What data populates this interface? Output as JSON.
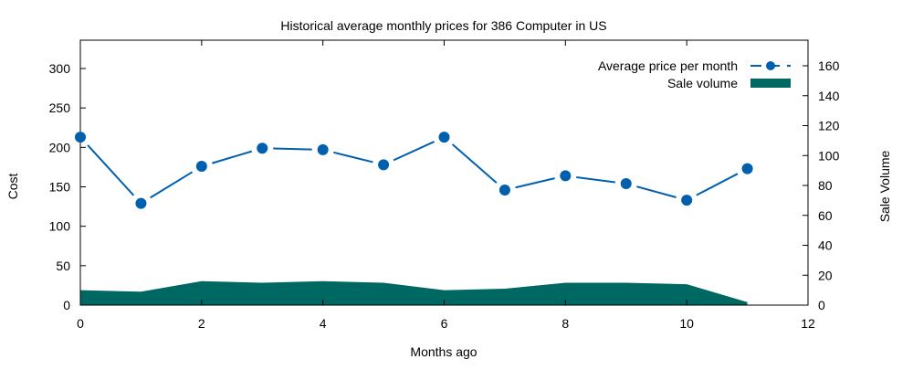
{
  "chart_data": {
    "type": "line",
    "title": "Historical average monthly prices for 386 Computer in US",
    "xlabel": "Months ago",
    "ylabel": "Cost",
    "y2label": "Sale Volume",
    "xlim": [
      0,
      12
    ],
    "ylim": [
      0,
      300
    ],
    "y2lim": [
      0,
      160
    ],
    "x_ticks": [
      0,
      2,
      4,
      6,
      8,
      10,
      12
    ],
    "y_ticks": [
      0,
      50,
      100,
      150,
      200,
      250,
      300
    ],
    "y2_ticks": [
      0,
      20,
      40,
      60,
      80,
      100,
      120,
      140,
      160
    ],
    "legend_position": "top-right",
    "grid": false,
    "x": [
      0,
      1,
      2,
      3,
      4,
      5,
      6,
      7,
      8,
      9,
      10,
      11
    ],
    "series": [
      {
        "name": "Average price per month",
        "axis": "left",
        "style": "linespoints",
        "color": "#0060ad",
        "values": [
          213,
          129,
          176,
          199,
          197,
          178,
          213,
          146,
          164,
          154,
          133,
          173
        ]
      },
      {
        "name": "Sale volume",
        "axis": "right",
        "style": "filledcurve",
        "color": "#006862",
        "values": [
          10,
          9,
          16,
          15,
          16,
          15,
          10,
          11,
          15,
          15,
          14,
          2
        ]
      }
    ]
  }
}
